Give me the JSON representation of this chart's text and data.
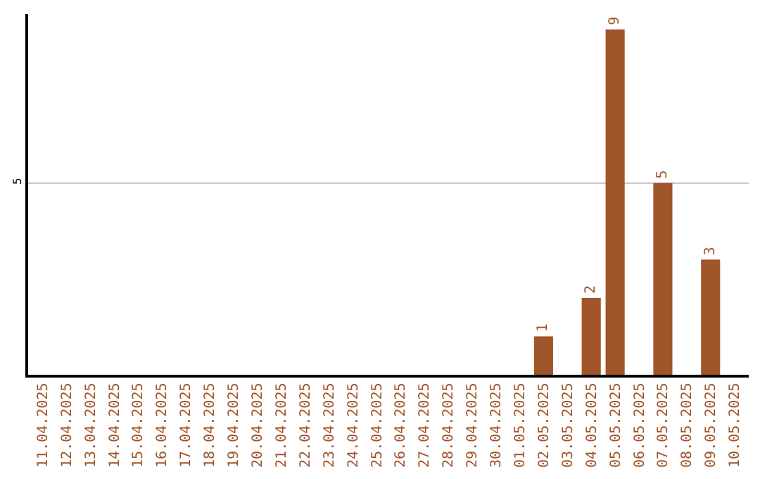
{
  "chart_data": {
    "type": "bar",
    "categories": [
      "11.04.2025",
      "12.04.2025",
      "13.04.2025",
      "14.04.2025",
      "15.04.2025",
      "16.04.2025",
      "17.04.2025",
      "18.04.2025",
      "19.04.2025",
      "20.04.2025",
      "21.04.2025",
      "22.04.2025",
      "23.04.2025",
      "24.04.2025",
      "25.04.2025",
      "26.04.2025",
      "27.04.2025",
      "28.04.2025",
      "29.04.2025",
      "30.04.2025",
      "01.05.2025",
      "02.05.2025",
      "03.05.2025",
      "04.05.2025",
      "05.05.2025",
      "06.05.2025",
      "07.05.2025",
      "08.05.2025",
      "09.05.2025",
      "10.05.2025"
    ],
    "values": [
      null,
      null,
      null,
      null,
      null,
      null,
      null,
      null,
      null,
      null,
      null,
      null,
      null,
      null,
      null,
      null,
      null,
      null,
      null,
      null,
      null,
      1,
      null,
      2,
      9,
      null,
      5,
      null,
      3,
      null
    ],
    "data_labels": true,
    "color": "#a0552a",
    "ylim": [
      0,
      9.4
    ],
    "yticks": [
      5
    ],
    "grid": "y",
    "legend": false
  }
}
